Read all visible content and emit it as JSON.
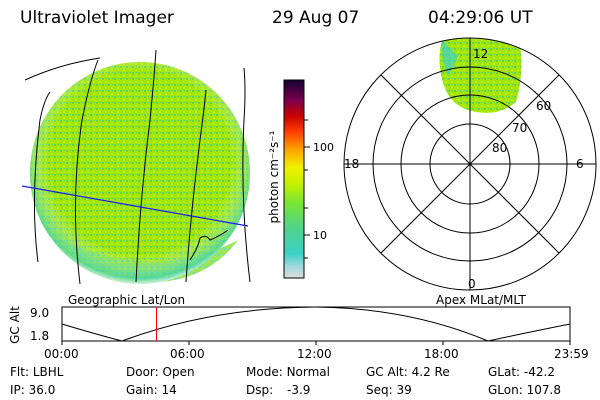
{
  "header": {
    "instrument": "Ultraviolet Imager",
    "date": "29 Aug 07",
    "time": "04:29:06 UT"
  },
  "left_panel": {
    "label": "Geographic Lat/Lon"
  },
  "right_panel": {
    "label": "Apex MLat/MLT",
    "mlt_labels": {
      "top": "12",
      "left": "18",
      "right": "6",
      "bottom": "0"
    },
    "lat_labels": [
      "60",
      "70",
      "80"
    ]
  },
  "colorbar": {
    "unit": "photon cm⁻²s⁻¹",
    "ticks": [
      "100",
      "10"
    ],
    "colors": [
      "#dcdcdc",
      "#3cd2c8",
      "#78e632",
      "#dcf000",
      "#ffa000",
      "#ff3c00",
      "#b40000",
      "#780050",
      "#140032"
    ]
  },
  "altitude_plot": {
    "ylabel": "GC Alt",
    "ymax": "9.0",
    "ymin": "1.8",
    "xticks": [
      "00:00",
      "06:00",
      "12:00",
      "18:00",
      "23:59"
    ],
    "current_time_fraction": 0.186,
    "marker_color": "#ff0000"
  },
  "status": {
    "filter": {
      "label": "Flt:",
      "value": "LBHL"
    },
    "ip": {
      "label": "IP:",
      "value": "36.0"
    },
    "door": {
      "label": "Door:",
      "value": "Open"
    },
    "gain": {
      "label": "Gain:",
      "value": "14"
    },
    "mode": {
      "label": "Mode:",
      "value": "Normal"
    },
    "dsp": {
      "label": "Dsp:",
      "value": "-3.9"
    },
    "gcalt": {
      "label": "GC Alt:",
      "value": "4.2 Re"
    },
    "seq": {
      "label": "Seq:",
      "value": "39"
    },
    "glat": {
      "label": "GLat:",
      "value": "-42.2"
    },
    "glon": {
      "label": "GLon:",
      "value": "107.8"
    }
  }
}
